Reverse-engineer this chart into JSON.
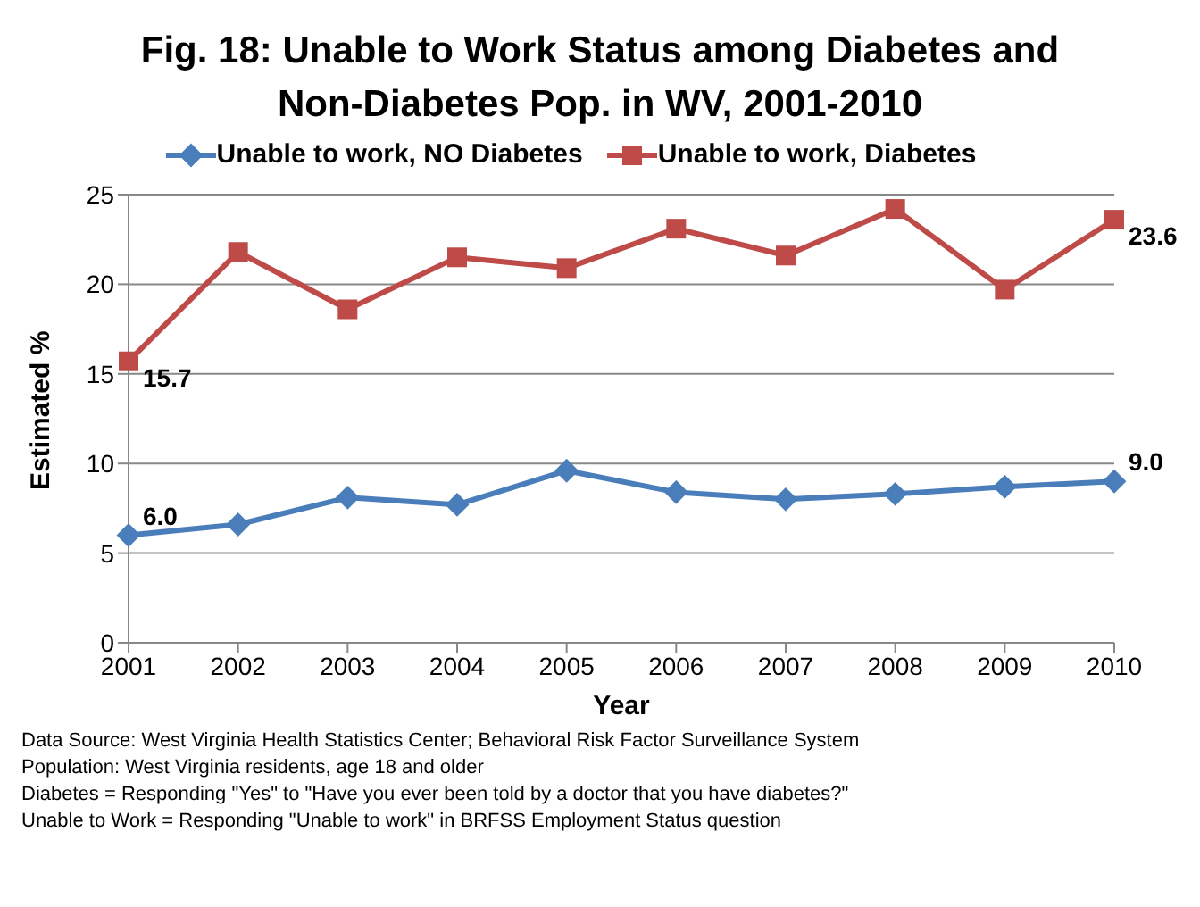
{
  "chart_data": {
    "type": "line",
    "title": "Fig. 18:  Unable to Work Status among Diabetes and Non-Diabetes Pop. in WV, 2001-2010",
    "xlabel": "Year",
    "ylabel": "Estimated %",
    "categories": [
      "2001",
      "2002",
      "2003",
      "2004",
      "2005",
      "2006",
      "2007",
      "2008",
      "2009",
      "2010"
    ],
    "series": [
      {
        "name": "Unable to work,  NO Diabetes",
        "color": "#4a7ebb",
        "marker": "diamond",
        "values": [
          6.0,
          6.6,
          8.1,
          7.7,
          9.6,
          8.4,
          8.0,
          8.3,
          8.7,
          9.0
        ],
        "value_labels": [
          "6.0",
          null,
          null,
          null,
          null,
          null,
          null,
          null,
          null,
          "9.0"
        ]
      },
      {
        "name": "Unable to work,  Diabetes",
        "color": "#be4b48",
        "marker": "square",
        "values": [
          15.7,
          21.8,
          18.6,
          21.5,
          20.9,
          23.1,
          21.6,
          24.2,
          19.7,
          23.6
        ],
        "value_labels": [
          "15.7",
          null,
          null,
          null,
          null,
          null,
          null,
          null,
          null,
          "23.6"
        ]
      }
    ],
    "ylim": [
      0,
      25
    ],
    "yticks": [
      0,
      5,
      10,
      15,
      20,
      25
    ],
    "grid": "y",
    "legend": "top",
    "line_style": "solid",
    "annotations": [
      "Data Source: West Virginia Health Statistics Center; Behavioral Risk Factor Surveillance System",
      "Population: West Virginia residents, age 18 and older",
      "Diabetes = Responding \"Yes\" to \"Have you ever been told by a doctor that you have diabetes?\"",
      "Unable to Work = Responding \"Unable to work\" in BRFSS Employment Status question"
    ]
  }
}
